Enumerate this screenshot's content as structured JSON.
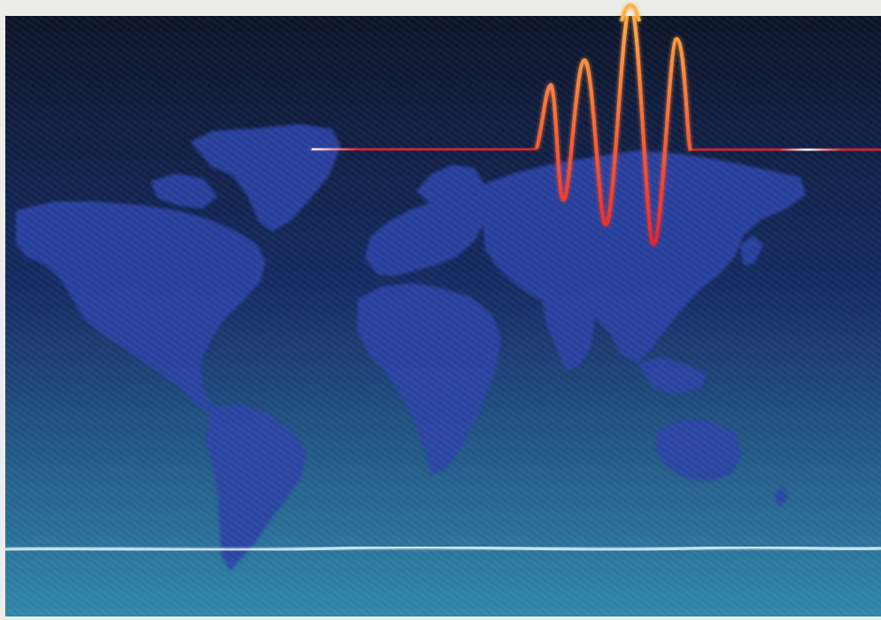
{
  "image": {
    "subject": "world-map-with-waveform",
    "colors": {
      "frame": "#ececea",
      "sky_top": "#0c1427",
      "sky_mid": "#152a63",
      "sea_bottom": "#2f86a8",
      "land": "#2a42a4",
      "wave_red": "#e8242c",
      "wave_orange": "#ffb04a",
      "wave_glow": "#ffffff",
      "horizon_line": "#e8f6ff"
    }
  }
}
